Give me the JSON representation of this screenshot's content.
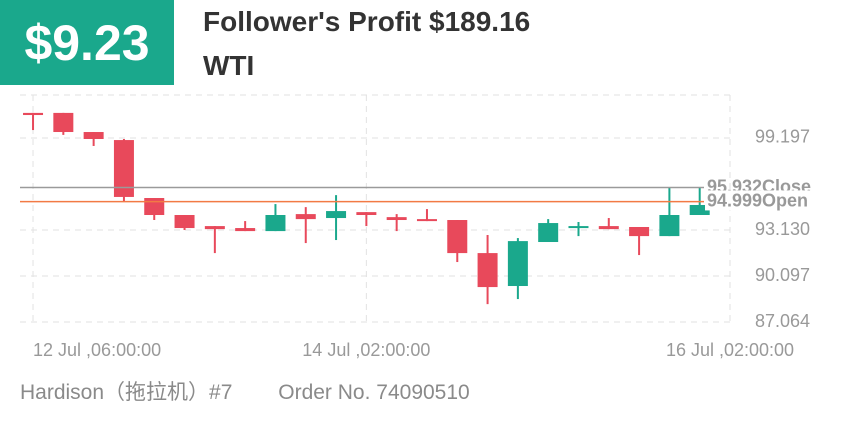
{
  "header": {
    "amount": "$9.23",
    "title": "Follower's Profit $189.16",
    "symbol": "WTI"
  },
  "footer": {
    "trader": "Hardison（拖拉机）#7",
    "order": "Order No. 74090510"
  },
  "chart_data": {
    "type": "candlestick",
    "open": [
      100.85,
      100.85,
      99.59,
      99.06,
      95.24,
      94.12,
      93.39,
      93.26,
      93.06,
      94.18,
      93.92,
      94.31,
      93.98,
      93.85,
      93.79,
      91.61,
      89.44,
      92.34,
      93.33,
      93.39,
      93.33,
      92.73,
      94.12
    ],
    "high": [
      100.85,
      100.85,
      99.59,
      99.13,
      95.24,
      94.12,
      93.39,
      93.72,
      94.84,
      94.64,
      95.43,
      94.31,
      94.18,
      94.51,
      93.79,
      92.8,
      92.6,
      93.85,
      93.66,
      93.92,
      93.33,
      95.96,
      95.9
    ],
    "low": [
      99.72,
      99.4,
      98.67,
      95.04,
      93.79,
      93.13,
      91.61,
      93.06,
      93.06,
      92.27,
      92.47,
      93.39,
      93.06,
      93.72,
      91.02,
      88.25,
      88.58,
      92.34,
      92.73,
      93.19,
      91.48,
      92.73,
      94.12
    ],
    "close": [
      100.71,
      99.59,
      99.13,
      95.31,
      94.12,
      93.26,
      93.19,
      93.06,
      94.12,
      93.85,
      94.38,
      94.12,
      93.79,
      93.72,
      91.61,
      89.37,
      92.4,
      93.59,
      93.39,
      93.19,
      92.73,
      94.12,
      94.78
    ],
    "up_color": "#1aa88c",
    "down_color": "#e8495b",
    "ylim": [
      86.87,
      102.03
    ],
    "yticks": [
      87.064,
      90.097,
      {
        "value": 93.13,
        "label": "93.130"
      },
      99.197
    ],
    "xlim": [
      -0.43,
      23.0
    ],
    "xticks": [
      {
        "value": 0,
        "label": "12 Jul ,06:00:00"
      },
      {
        "value": 11,
        "label": "14 Jul ,02:00:00"
      },
      {
        "value": 23,
        "label": "16 Jul ,02:00:00"
      }
    ],
    "reference_lines": [
      {
        "value": 95.932,
        "label": "95.932Close",
        "color": "#9a9a9a"
      },
      {
        "value": 94.999,
        "label": "94.999Open",
        "color": "#f27a45"
      }
    ],
    "grid": true
  }
}
